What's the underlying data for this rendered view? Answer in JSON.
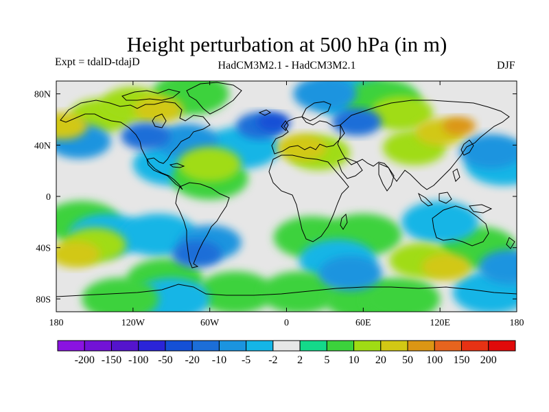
{
  "header": {
    "title": "Height perturbation at 500 hPa (in m)",
    "experiment": "Expt = tdalD-tdajD",
    "models": "HadCM3M2.1 - HadCM3M2.1",
    "season": "DJF"
  },
  "axes": {
    "lat_labels": [
      "80N",
      "40N",
      "0",
      "40S",
      "80S"
    ],
    "lat_values": [
      80,
      40,
      0,
      -40,
      -80
    ],
    "lon_labels": [
      "180",
      "120W",
      "60W",
      "0",
      "60E",
      "120E",
      "180"
    ],
    "lon_values": [
      -180,
      -120,
      -60,
      0,
      60,
      120,
      180
    ],
    "lat_range": [
      -90,
      90
    ],
    "lon_range": [
      -180,
      180
    ]
  },
  "colorbar": {
    "tick_labels": [
      "-200",
      "-150",
      "-100",
      "-50",
      "-20",
      "-10",
      "-5",
      "-2",
      "2",
      "5",
      "10",
      "20",
      "50",
      "100",
      "150",
      "200"
    ],
    "colors": [
      "#8a13e0",
      "#7212d6",
      "#5414cc",
      "#2a24d8",
      "#1450d6",
      "#1c6ed8",
      "#1b94df",
      "#14b5e6",
      "#e6e6e6",
      "#14d98a",
      "#3cd23c",
      "#a0dc14",
      "#d2c814",
      "#dc9614",
      "#e6641e",
      "#e63214",
      "#e00a0a"
    ]
  },
  "map": {
    "background_color": "#e6e6e6",
    "coastline_color": "#000000",
    "anomaly_cells": [
      {
        "lon": -145,
        "lat": 63,
        "level": 10
      },
      {
        "lon": -120,
        "lat": 72,
        "level": 10
      },
      {
        "lon": -100,
        "lat": 68,
        "level": 20
      },
      {
        "lon": -75,
        "lat": 80,
        "level": 5
      },
      {
        "lon": -175,
        "lat": 55,
        "level": 20
      },
      {
        "lon": -162,
        "lat": 43,
        "level": -10
      },
      {
        "lon": -110,
        "lat": 47,
        "level": -20
      },
      {
        "lon": -78,
        "lat": 43,
        "level": -10
      },
      {
        "lon": -90,
        "lat": 25,
        "level": -5
      },
      {
        "lon": -60,
        "lat": 25,
        "level": 10
      },
      {
        "lon": -60,
        "lat": 14,
        "level": 5
      },
      {
        "lon": -20,
        "lat": 55,
        "level": -20
      },
      {
        "lon": -10,
        "lat": 58,
        "level": -50
      },
      {
        "lon": -35,
        "lat": 38,
        "level": -5
      },
      {
        "lon": 12,
        "lat": 38,
        "level": 20
      },
      {
        "lon": 25,
        "lat": 34,
        "level": 10
      },
      {
        "lon": 30,
        "lat": 80,
        "level": -10
      },
      {
        "lon": 50,
        "lat": 78,
        "level": -5
      },
      {
        "lon": 55,
        "lat": 58,
        "level": -20
      },
      {
        "lon": 75,
        "lat": 75,
        "level": 5
      },
      {
        "lon": 120,
        "lat": 50,
        "level": 20
      },
      {
        "lon": 135,
        "lat": 55,
        "level": 50
      },
      {
        "lon": 100,
        "lat": 38,
        "level": 10
      },
      {
        "lon": 90,
        "lat": 65,
        "level": 10
      },
      {
        "lon": 160,
        "lat": 35,
        "level": -10
      },
      {
        "lon": 170,
        "lat": 25,
        "level": -5
      },
      {
        "lon": -160,
        "lat": -20,
        "level": 5
      },
      {
        "lon": -165,
        "lat": -45,
        "level": 20
      },
      {
        "lon": -150,
        "lat": -38,
        "level": 10
      },
      {
        "lon": -140,
        "lat": -30,
        "level": -5
      },
      {
        "lon": -100,
        "lat": -30,
        "level": -5
      },
      {
        "lon": -70,
        "lat": -45,
        "level": -20
      },
      {
        "lon": -60,
        "lat": -36,
        "level": -10
      },
      {
        "lon": -95,
        "lat": -65,
        "level": 5
      },
      {
        "lon": -40,
        "lat": -75,
        "level": 5
      },
      {
        "lon": -90,
        "lat": -80,
        "level": -5
      },
      {
        "lon": -130,
        "lat": -80,
        "level": 5
      },
      {
        "lon": 20,
        "lat": -32,
        "level": 5
      },
      {
        "lon": 60,
        "lat": -30,
        "level": 5
      },
      {
        "lon": 40,
        "lat": -50,
        "level": -5
      },
      {
        "lon": 50,
        "lat": -60,
        "level": -10
      },
      {
        "lon": 10,
        "lat": -75,
        "level": 5
      },
      {
        "lon": 60,
        "lat": -80,
        "level": 5
      },
      {
        "lon": 125,
        "lat": -55,
        "level": 20
      },
      {
        "lon": 105,
        "lat": -50,
        "level": 10
      },
      {
        "lon": 150,
        "lat": -40,
        "level": 5
      },
      {
        "lon": 120,
        "lat": -20,
        "level": -5
      },
      {
        "lon": 175,
        "lat": -55,
        "level": -10
      },
      {
        "lon": 160,
        "lat": -75,
        "level": -5
      },
      {
        "lon": 90,
        "lat": -80,
        "level": 5
      }
    ]
  }
}
